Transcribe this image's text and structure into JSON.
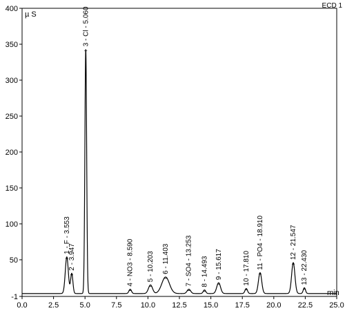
{
  "chart_data": {
    "type": "line",
    "title": "",
    "corner_label": "ECD 1",
    "ylabel": "µ S",
    "xlabel": "",
    "x_unit_label": "min",
    "xlim": [
      0.0,
      25.0
    ],
    "ylim": [
      -1,
      400
    ],
    "x_ticks": [
      0.0,
      2.5,
      5.0,
      7.5,
      10.0,
      12.5,
      15.0,
      17.5,
      20.0,
      22.5,
      25.0
    ],
    "x_tick_labels": [
      "0.0",
      "2.5",
      "5.0",
      "7.5",
      "10.0",
      "12.5",
      "15.0",
      "17.5",
      "20.0",
      "22.5",
      "25.0"
    ],
    "y_ticks": [
      -1,
      50,
      100,
      150,
      200,
      250,
      300,
      350,
      400
    ],
    "y_tick_labels": [
      "-1",
      "50",
      "100",
      "150",
      "200",
      "250",
      "300",
      "350",
      "400"
    ],
    "grid": false,
    "line_color": "#000000",
    "baseline": 3,
    "peaks": [
      {
        "retention": 3.553,
        "height": 51,
        "width": 0.12,
        "label": "1 - F - 3.553"
      },
      {
        "retention": 3.947,
        "height": 28,
        "width": 0.09,
        "label": "2 - 3.947"
      },
      {
        "retention": 5.06,
        "height": 340,
        "width": 0.07,
        "label": "3 - Cl - 5.060"
      },
      {
        "retention": 8.59,
        "height": 6,
        "width": 0.1,
        "label": "4 - NO3 - 8.590"
      },
      {
        "retention": 10.203,
        "height": 12,
        "width": 0.16,
        "label": "5 - 10.203"
      },
      {
        "retention": 11.403,
        "height": 23,
        "width": 0.3,
        "label": "6 - 11.403"
      },
      {
        "retention": 13.253,
        "height": 6,
        "width": 0.14,
        "label": "7 - SO4 - 13.253"
      },
      {
        "retention": 14.493,
        "height": 5,
        "width": 0.1,
        "label": "8 - 14.493"
      },
      {
        "retention": 15.617,
        "height": 15,
        "width": 0.15,
        "label": "9 - 15.617"
      },
      {
        "retention": 17.81,
        "height": 7,
        "width": 0.1,
        "label": "10 - 17.810"
      },
      {
        "retention": 18.91,
        "height": 29,
        "width": 0.13,
        "label": "11 - PO4 - 18.910"
      },
      {
        "retention": 21.547,
        "height": 43,
        "width": 0.13,
        "label": "12 - 21.547"
      },
      {
        "retention": 22.43,
        "height": 8,
        "width": 0.09,
        "label": "13 - 22.430"
      }
    ]
  }
}
